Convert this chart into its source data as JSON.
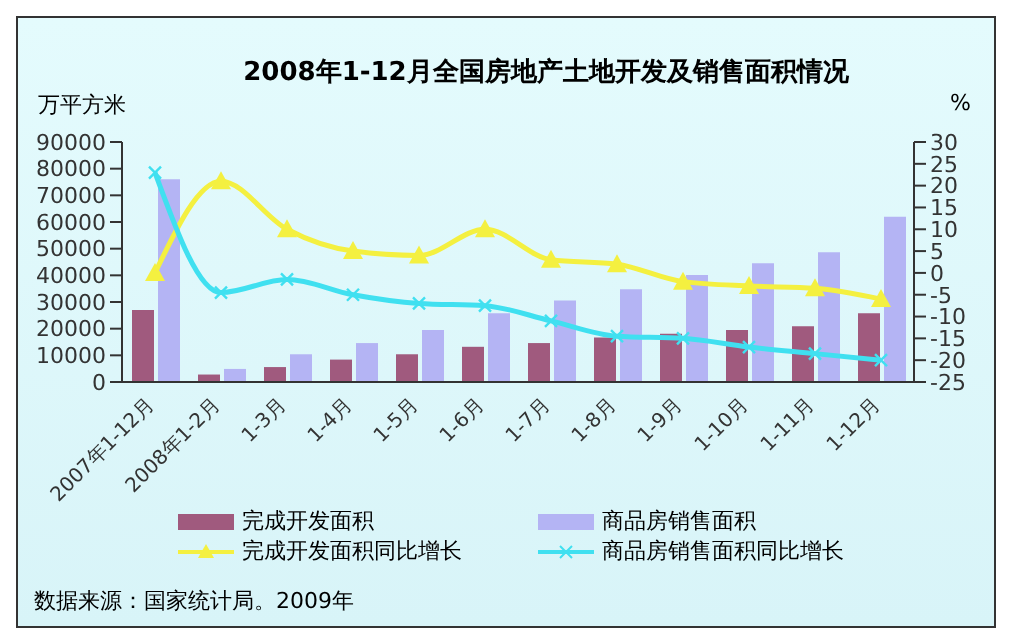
{
  "chart_data": {
    "type": "bar",
    "title": "2008年1-12月全国房地产土地开发及销售面积情况",
    "ylabel": "万平方米",
    "y2label": "%",
    "categories": [
      "2007年1-12月",
      "2008年1-2月",
      "1-3月",
      "1-4月",
      "1-5月",
      "1-6月",
      "1-7月",
      "1-8月",
      "1-9月",
      "1-10月",
      "1-11月",
      "1-12月"
    ],
    "series": [
      {
        "name": "完成开发面积",
        "color": "#a05a7e",
        "values": [
          27000,
          2800,
          5600,
          8400,
          10400,
          13200,
          14600,
          16700,
          18100,
          19500,
          20900,
          25800
        ]
      },
      {
        "name": "商品房销售面积",
        "color": "#b4b4f4",
        "values": [
          76000,
          4900,
          10400,
          14600,
          19500,
          25800,
          30600,
          34800,
          40100,
          44500,
          48700,
          62000
        ]
      },
      {
        "name": "完成开发面积同比增长",
        "type": "line",
        "axis": "y2",
        "marker": "triangle",
        "color": "#f4f040",
        "values": [
          0,
          21,
          10,
          5,
          4,
          10,
          3,
          2,
          -2,
          -3,
          -3.5,
          -6
        ]
      },
      {
        "name": "商品房销售面积同比增长",
        "type": "line",
        "axis": "y2",
        "marker": "cross",
        "color": "#40e0f0",
        "values": [
          23,
          -4.5,
          -1.5,
          -5,
          -7,
          -7.5,
          -11,
          -14.5,
          -15,
          -17,
          -18.5,
          -20
        ]
      }
    ],
    "ylim": [
      0,
      90000
    ],
    "yticks": [
      0,
      10000,
      20000,
      30000,
      40000,
      50000,
      60000,
      70000,
      80000,
      90000
    ],
    "y2lim": [
      -25,
      30
    ],
    "y2ticks": [
      -25,
      -20,
      -15,
      -10,
      -5,
      0,
      5,
      10,
      15,
      20,
      25,
      30
    ],
    "legend": "bottom",
    "annotations": [
      "数据来源：国家统计局。2009年"
    ]
  }
}
